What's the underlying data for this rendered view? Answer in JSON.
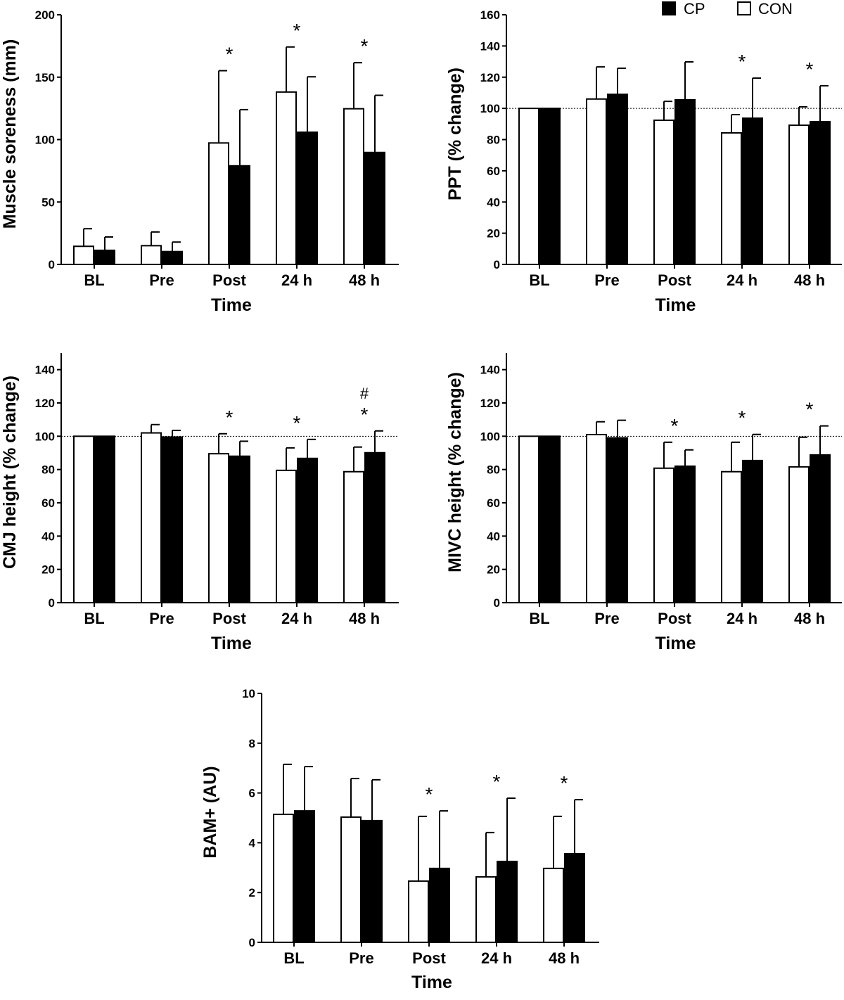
{
  "legend": [
    {
      "name": "CP",
      "color": "#000000"
    },
    {
      "name": "CON",
      "color": "#ffffff"
    }
  ],
  "chart_data": [
    {
      "type": "bar",
      "ylabel": "Muscle soreness (mm)",
      "xlabel": "Time",
      "categories": [
        "BL",
        "Pre",
        "Post",
        "24 h",
        "48 h"
      ],
      "ylim": [
        0,
        200
      ],
      "yticks": [
        0,
        50,
        100,
        150,
        200
      ],
      "reference_line": null,
      "series": [
        {
          "name": "CON",
          "values": [
            14.5,
            15,
            97.3,
            138.1,
            124.7
          ],
          "error": [
            14.1,
            11,
            57.9,
            36.1,
            36.9
          ]
        },
        {
          "name": "CP",
          "values": [
            11.3,
            10.3,
            79,
            105.9,
            89.7
          ],
          "error": [
            10.7,
            7.6,
            45,
            44.4,
            45.8
          ]
        }
      ],
      "annotations": [
        "",
        "",
        "*",
        "*",
        "*"
      ]
    },
    {
      "type": "bar",
      "ylabel": "PPT (% change)",
      "xlabel": "Time",
      "categories": [
        "BL",
        "Pre",
        "Post",
        "24 h",
        "48 h"
      ],
      "ylim": [
        0,
        160
      ],
      "yticks": [
        0,
        20,
        40,
        60,
        80,
        100,
        120,
        140,
        160
      ],
      "reference_line": 100,
      "series": [
        {
          "name": "CON",
          "values": [
            100,
            106,
            92.4,
            84.3,
            89.2
          ],
          "error": [
            0,
            20.6,
            12.1,
            11.7,
            11.8
          ]
        },
        {
          "name": "CP",
          "values": [
            100,
            109,
            105.5,
            93.7,
            91.5
          ],
          "error": [
            0,
            16.7,
            24.3,
            25.7,
            23
          ]
        }
      ],
      "annotations": [
        "",
        "",
        "",
        "*",
        "*"
      ]
    },
    {
      "type": "bar",
      "ylabel": "CMJ height (% change)",
      "xlabel": "Time",
      "categories": [
        "BL",
        "Pre",
        "Post",
        "24 h",
        "48 h"
      ],
      "ylim": [
        0,
        150
      ],
      "yticks": [
        0,
        20,
        40,
        60,
        80,
        100,
        120,
        140
      ],
      "reference_line": 100,
      "series": [
        {
          "name": "CON",
          "values": [
            100,
            102,
            89.5,
            79.5,
            78.7
          ],
          "error": [
            0,
            5,
            12,
            13.5,
            14.8
          ]
        },
        {
          "name": "CP",
          "values": [
            100,
            99.5,
            88,
            86.7,
            90.1
          ],
          "error": [
            0,
            4,
            9,
            11.4,
            13.1
          ]
        }
      ],
      "annotations": [
        "",
        "",
        "*",
        "*",
        "*"
      ],
      "annotations2": [
        "",
        "",
        "",
        "",
        "#"
      ]
    },
    {
      "type": "bar",
      "ylabel": "MIVC height (% change)",
      "xlabel": "Time",
      "categories": [
        "BL",
        "Pre",
        "Post",
        "24 h",
        "48 h"
      ],
      "ylim": [
        0,
        150
      ],
      "yticks": [
        0,
        20,
        40,
        60,
        80,
        100,
        120,
        140
      ],
      "reference_line": 100,
      "series": [
        {
          "name": "CON",
          "values": [
            100,
            101,
            80.8,
            78.7,
            81.6
          ],
          "error": [
            0,
            7.7,
            15.6,
            17.7,
            17.8
          ]
        },
        {
          "name": "CP",
          "values": [
            100,
            99,
            82,
            85.4,
            88.8
          ],
          "error": [
            0,
            10.6,
            9.8,
            15.7,
            17.4
          ]
        }
      ],
      "annotations": [
        "",
        "",
        "*",
        "*",
        "*"
      ]
    },
    {
      "type": "bar",
      "ylabel": "BAM+ (AU)",
      "xlabel": "Time",
      "categories": [
        "BL",
        "Pre",
        "Post",
        "24 h",
        "48 h"
      ],
      "ylim": [
        0,
        10
      ],
      "yticks": [
        0,
        2,
        4,
        6,
        8,
        10
      ],
      "reference_line": null,
      "series": [
        {
          "name": "CON",
          "values": [
            5.14,
            5.03,
            2.46,
            2.63,
            2.97
          ],
          "error": [
            2.01,
            1.55,
            2.6,
            1.78,
            2.09
          ]
        },
        {
          "name": "CP",
          "values": [
            5.28,
            4.89,
            2.97,
            3.25,
            3.56
          ],
          "error": [
            1.78,
            1.64,
            2.31,
            2.54,
            2.17
          ]
        }
      ],
      "annotations": [
        "",
        "",
        "*",
        "*",
        "*"
      ]
    }
  ]
}
